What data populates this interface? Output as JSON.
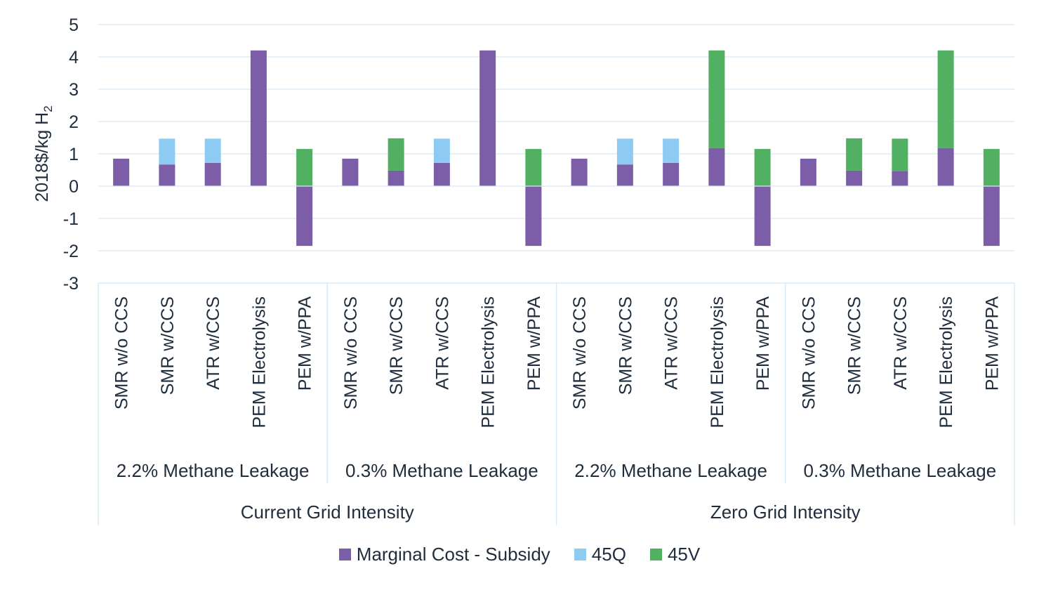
{
  "chart_data": {
    "type": "bar",
    "stacked": true,
    "ylabel": "2018$/kg H",
    "ylabel_subscript": "2",
    "ylim": [
      -3,
      5
    ],
    "yticks": [
      5,
      4,
      3,
      2,
      1,
      0,
      -1,
      -2,
      -3
    ],
    "grid": true,
    "legend_position": "bottom",
    "outer_groups": [
      "Current Grid Intensity",
      "Zero Grid Intensity"
    ],
    "inner_groups": [
      "2.2% Methane Leakage",
      "0.3% Methane Leakage",
      "2.2% Methane Leakage",
      "0.3% Methane Leakage"
    ],
    "categories": [
      "SMR w/o CCS",
      "SMR w/CCS",
      "ATR w/CCS",
      "PEM Electrolysis",
      "PEM w/PPA",
      "SMR w/o CCS",
      "SMR w/CCS",
      "ATR w/CCS",
      "PEM Electrolysis",
      "PEM w/PPA",
      "SMR w/o CCS",
      "SMR w/CCS",
      "ATR w/CCS",
      "PEM Electrolysis",
      "PEM w/PPA",
      "SMR w/o CCS",
      "SMR w/CCS",
      "ATR w/CCS",
      "PEM Electrolysis",
      "PEM w/PPA"
    ],
    "series": [
      {
        "name": "Marginal Cost - Subsidy",
        "color": "#7b5ea7",
        "values": [
          0.85,
          0.67,
          0.72,
          4.2,
          -1.85,
          0.85,
          0.48,
          0.72,
          4.2,
          -1.85,
          0.85,
          0.67,
          0.72,
          1.18,
          -1.85,
          0.85,
          0.48,
          0.47,
          1.18,
          -1.85
        ]
      },
      {
        "name": "45Q",
        "color": "#8ecbf2",
        "values": [
          0,
          0.8,
          0.75,
          0,
          0,
          0,
          0,
          0.75,
          0,
          0,
          0,
          0.8,
          0.75,
          0,
          0,
          0,
          0,
          0,
          0,
          0
        ]
      },
      {
        "name": "45V",
        "color": "#52b062",
        "values": [
          0,
          0,
          0,
          0,
          1.15,
          0,
          1.0,
          0,
          0,
          1.15,
          0,
          0,
          0,
          3.02,
          1.15,
          0,
          1.0,
          1.0,
          3.02,
          1.15
        ]
      }
    ]
  }
}
